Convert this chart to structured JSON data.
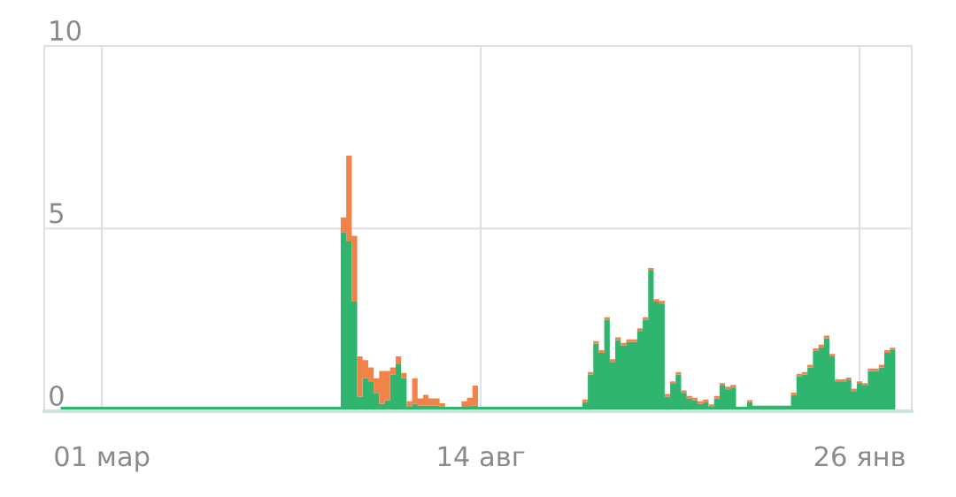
{
  "chart_data": {
    "type": "area",
    "stacked": true,
    "grid": true,
    "categories": [
      null,
      null,
      null,
      null,
      null,
      null,
      null,
      null,
      null,
      null,
      "01 мар",
      null,
      null,
      null,
      null,
      null,
      null,
      null,
      null,
      null,
      null,
      null,
      null,
      null,
      null,
      null,
      null,
      null,
      null,
      null,
      null,
      null,
      null,
      null,
      null,
      null,
      null,
      null,
      null,
      null,
      null,
      null,
      null,
      null,
      null,
      null,
      null,
      null,
      null,
      null,
      null,
      null,
      null,
      null,
      null,
      null,
      null,
      null,
      null,
      null,
      null,
      null,
      null,
      null,
      null,
      null,
      null,
      null,
      null,
      null,
      null,
      null,
      null,
      null,
      null,
      null,
      null,
      null,
      null,
      "14 авг",
      null,
      null,
      null,
      null,
      null,
      null,
      null,
      null,
      null,
      null,
      null,
      null,
      null,
      null,
      null,
      null,
      null,
      null,
      null,
      null,
      null,
      null,
      null,
      null,
      null,
      null,
      null,
      null,
      null,
      null,
      null,
      null,
      null,
      null,
      null,
      null,
      null,
      null,
      null,
      null,
      null,
      null,
      null,
      null,
      null,
      null,
      null,
      null,
      null,
      null,
      null,
      null,
      null,
      null,
      null,
      null,
      null,
      null,
      null,
      null,
      null,
      null,
      null,
      null,
      null,
      null,
      null,
      null,
      "26 янв",
      null,
      null,
      null,
      null,
      null,
      null,
      null,
      null,
      null
    ],
    "ylim": [
      0,
      10
    ],
    "yticks": [
      0,
      5,
      10
    ],
    "series": [
      {
        "color": "#2fb56e",
        "values": [
          0,
          0,
          0,
          0.12,
          0.12,
          0.12,
          0.12,
          0.12,
          0.12,
          0.12,
          0.12,
          0.12,
          0.12,
          0.12,
          0.12,
          0.12,
          0.12,
          0.12,
          0.12,
          0.12,
          0.12,
          0.12,
          0.12,
          0.12,
          0.12,
          0.12,
          0.12,
          0.12,
          0.12,
          0.12,
          0.12,
          0.12,
          0.12,
          0.12,
          0.12,
          0.12,
          0.12,
          0.12,
          0.12,
          0.12,
          0.12,
          0.12,
          0.12,
          0.12,
          0.12,
          0.12,
          0.12,
          0.12,
          0.12,
          0.12,
          0.12,
          0.12,
          0.12,
          0.12,
          4.9,
          4.65,
          3.0,
          0.4,
          0.9,
          0.8,
          0.5,
          0.2,
          0.3,
          1.0,
          1.3,
          0.9,
          0.12,
          0.2,
          0.15,
          0.15,
          0.15,
          0.15,
          0.12,
          0.12,
          0.12,
          0.12,
          0.12,
          0.12,
          0.15,
          0.12,
          0.12,
          0.12,
          0.12,
          0.12,
          0.12,
          0.12,
          0.12,
          0.12,
          0.12,
          0.12,
          0.12,
          0.12,
          0.12,
          0.12,
          0.12,
          0.12,
          0.12,
          0.12,
          0.25,
          1.0,
          1.85,
          1.6,
          2.5,
          1.35,
          1.95,
          1.8,
          1.9,
          1.9,
          2.2,
          2.5,
          3.85,
          3.0,
          2.95,
          0.4,
          0.75,
          1.0,
          0.5,
          0.35,
          0.3,
          0.2,
          0.25,
          0.12,
          0.35,
          0.7,
          0.6,
          0.65,
          0.12,
          0.12,
          0.25,
          0.15,
          0.15,
          0.15,
          0.15,
          0.15,
          0.15,
          0.15,
          0.44,
          0.95,
          1.0,
          1.2,
          1.65,
          1.75,
          2.0,
          1.5,
          0.8,
          0.8,
          0.85,
          0.55,
          0.75,
          0.7,
          1.1,
          1.1,
          1.2,
          1.6,
          1.67,
          0,
          0,
          0
        ]
      },
      {
        "color": "#f0834a",
        "values": [
          0,
          0,
          0,
          0,
          0,
          0,
          0,
          0,
          0,
          0,
          0,
          0,
          0,
          0,
          0,
          0,
          0,
          0,
          0,
          0,
          0,
          0,
          0,
          0,
          0,
          0,
          0,
          0,
          0,
          0,
          0,
          0,
          0,
          0,
          0,
          0,
          0,
          0,
          0,
          0,
          0,
          0,
          0,
          0,
          0,
          0,
          0,
          0,
          0,
          0,
          0,
          0,
          0,
          0,
          0.4,
          2.35,
          1.8,
          1.1,
          0.5,
          0.4,
          0.4,
          0.9,
          0.8,
          0.2,
          0.2,
          0.15,
          0.15,
          0.7,
          0.2,
          0.3,
          0.2,
          0.2,
          0.1,
          0,
          0,
          0,
          0.15,
          0.25,
          0.55,
          0,
          0,
          0,
          0,
          0,
          0,
          0,
          0,
          0,
          0,
          0,
          0,
          0,
          0,
          0,
          0,
          0,
          0,
          0,
          0.07,
          0.07,
          0.07,
          0.07,
          0.07,
          0.07,
          0.07,
          0.07,
          0.07,
          0.07,
          0.07,
          0.07,
          0.07,
          0.07,
          0.07,
          0.07,
          0.07,
          0.07,
          0.07,
          0.07,
          0.07,
          0.07,
          0.07,
          0.07,
          0.07,
          0.07,
          0.07,
          0.07,
          0,
          0,
          0.05,
          0,
          0,
          0,
          0,
          0,
          0,
          0,
          0.07,
          0.07,
          0.07,
          0.07,
          0.07,
          0.07,
          0.07,
          0.07,
          0.07,
          0.07,
          0.07,
          0.07,
          0.07,
          0.07,
          0.07,
          0.07,
          0.07,
          0.07,
          0.07,
          0,
          0,
          0
        ]
      }
    ]
  }
}
